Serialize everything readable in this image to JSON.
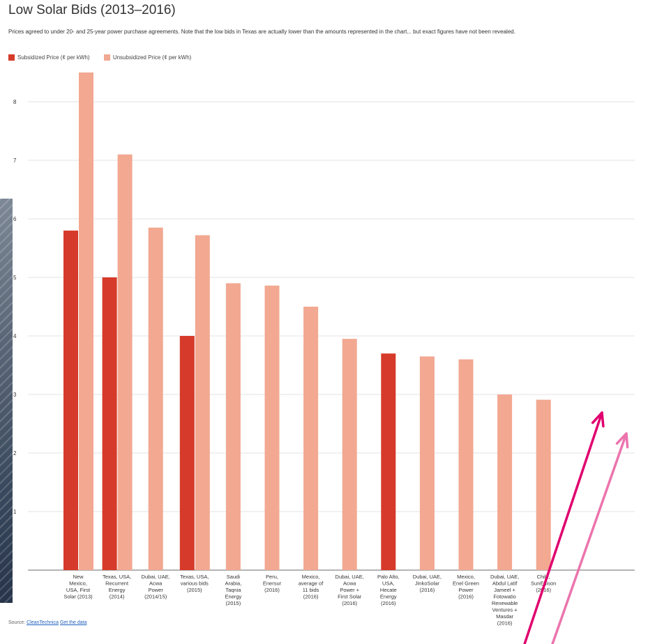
{
  "chart_data": {
    "type": "bar",
    "title": "Low Solar Bids (2013–2016)",
    "subtitle": "Prices agreed to under 20- and 25-year power purchase agreements. Note that the low bids in Texas are actually lower than the amounts represented in the chart... but exact figures have not been revealed.",
    "categories": [
      "New Mexico, USA, First Solar (2013)",
      "Texas, USA, Recurrent Energy (2014)",
      "Dubai, UAE, Acwa Power (2014/15)",
      "Texas, USA, various bids (2015)",
      "Saudi Arabia, Taqnia Energy (2015)",
      "Peru, Enersur (2016)",
      "Mexico, average of 11 bids (2016)",
      "Dubai, UAE, Acwa Power + First Solar (2016)",
      "Palo Alto, USA, Hecate Energy (2016)",
      "Dubai, UAE, JinkoSolar (2016)",
      "Mexico, Enel Green Power (2016)",
      "Dubai, UAE, Abdul Latif Jameel + Fotowatio Renewable Ventures + Masdar (2016)",
      "Chile, SunEdison (2016)"
    ],
    "category_labels": [
      [
        "New",
        "Mexico,",
        "USA, First",
        "Solar (2013)"
      ],
      [
        "Texas, USA,",
        "Recurrent",
        "Energy",
        "(2014)"
      ],
      [
        "Dubai, UAE,",
        "Acwa",
        "Power",
        "(2014/15)"
      ],
      [
        "Texas, USA,",
        "various bids",
        "(2015)"
      ],
      [
        "Saudi",
        "Arabia,",
        "Taqnia",
        "Energy",
        "(2015)"
      ],
      [
        "Peru,",
        "Enersur",
        "(2016)"
      ],
      [
        "Mexico,",
        "average of",
        "11 bids",
        "(2016)"
      ],
      [
        "Dubai, UAE,",
        "Acwa",
        "Power +",
        "First Solar",
        "(2016)"
      ],
      [
        "Palo Alto,",
        "USA,",
        "Hecate",
        "Energy",
        "(2016)"
      ],
      [
        "Dubai, UAE,",
        "JinkoSolar",
        "(2016)"
      ],
      [
        "Mexico,",
        "Enel Green",
        "Power",
        "(2016)"
      ],
      [
        "Dubai, UAE,",
        "Abdul Latif",
        "Jameel +",
        "Fotowatio",
        "Renewable",
        "Ventures +",
        "Masdar",
        "(2016)"
      ],
      [
        "Chile,",
        "SunEdison",
        "(2016)"
      ]
    ],
    "series": [
      {
        "name": "Subsidized Price (¢ per kWh)",
        "color": "#d63a2a",
        "values": [
          5.8,
          5.0,
          null,
          4.0,
          null,
          null,
          null,
          null,
          3.7,
          null,
          null,
          null,
          null
        ]
      },
      {
        "name": "Unsubsidized Price (¢ per kWh)",
        "color": "#f2a891",
        "values": [
          8.5,
          7.1,
          5.85,
          5.72,
          4.9,
          4.86,
          4.5,
          3.95,
          null,
          3.65,
          3.6,
          3.0,
          2.91
        ]
      }
    ],
    "y_ticks": [
      1,
      2,
      3,
      4,
      5,
      6,
      7,
      8
    ],
    "ylim": [
      0,
      8.9
    ],
    "grid": true,
    "legend_position": "top-left",
    "source_prefix": "Source: ",
    "source_links": [
      "CleanTechnica",
      "Get the data"
    ]
  },
  "annotations": {
    "arrows": [
      {
        "color": "#e0006e"
      },
      {
        "color": "#ec74ad"
      }
    ]
  }
}
